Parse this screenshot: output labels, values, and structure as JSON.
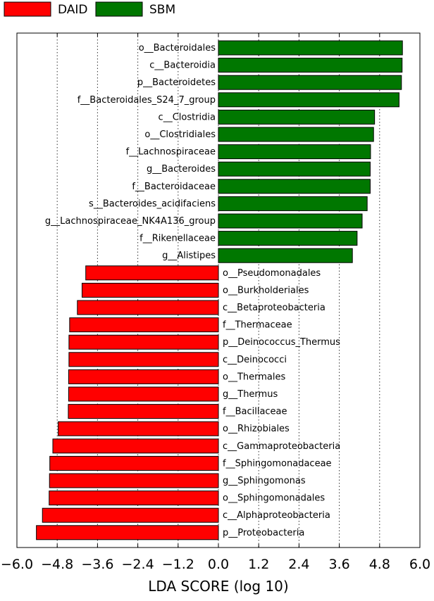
{
  "chart_data": {
    "type": "bar",
    "orientation": "horizontal",
    "xlabel": "LDA SCORE (log 10)",
    "xlim": [
      -6.0,
      6.0
    ],
    "xticks": [
      -6.0,
      -4.8,
      -3.6,
      -2.4,
      -1.2,
      0.0,
      1.2,
      2.4,
      3.6,
      4.8,
      6.0
    ],
    "xtick_labels": [
      "−6.0",
      "−4.8",
      "−3.6",
      "−2.4",
      "−1.2",
      "0.0",
      "1.2",
      "2.4",
      "3.6",
      "4.8",
      "6.0"
    ],
    "grid": "vertical dotted lines at x ticks",
    "legend_placement": "top-left, above plot",
    "legend": [
      {
        "name": "DAID",
        "color": "#ff0000"
      },
      {
        "name": "SBM",
        "color": "#007700"
      }
    ],
    "series": [
      {
        "name": "SBM",
        "color": "#007700",
        "categories": [
          "o__Bacteroidales",
          "c__Bacteroidia",
          "p__Bacteroidetes",
          "f__Bacteroidales_S24_7_group",
          "c__Clostridia",
          "o__Clostridiales",
          "f__Lachnospiraceae",
          "g__Bacteroides",
          "f__Bacteroidaceae",
          "s__Bacteroides_acidifaciens",
          "g__Lachnospiraceae_NK4A136_group",
          "f__Rikenellaceae",
          "g__Alistipes"
        ],
        "values": [
          5.48,
          5.47,
          5.45,
          5.38,
          4.65,
          4.62,
          4.53,
          4.52,
          4.52,
          4.43,
          4.28,
          4.13,
          3.99
        ]
      },
      {
        "name": "DAID",
        "color": "#ff0000",
        "categories": [
          "o__Pseudomonadales",
          "o__Burkholderiales",
          "c__Betaproteobacteria",
          "f__Thermaceae",
          "p__Deinococcus_Thermus",
          "c__Deinococci",
          "o__Thermales",
          "g__Thermus",
          "f__Bacillaceae",
          "o__Rhizobiales",
          "c__Gammaproteobacteria",
          "f__Sphingomonadaceae",
          "g__Sphingomonas",
          "o__Sphingomonadales",
          "c__Alphaproteobacteria",
          "p__Proteobacteria"
        ],
        "values": [
          -3.95,
          -4.06,
          -4.2,
          -4.43,
          -4.45,
          -4.45,
          -4.46,
          -4.46,
          -4.47,
          -4.77,
          -4.93,
          -5.02,
          -5.03,
          -5.04,
          -5.24,
          -5.42
        ]
      }
    ]
  }
}
